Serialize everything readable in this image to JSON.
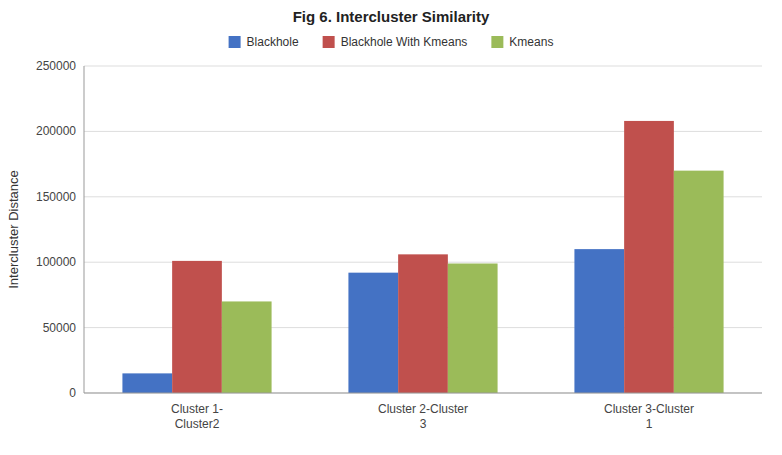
{
  "chart_data": {
    "type": "bar",
    "title": "Fig 6. Intercluster Similarity",
    "ylabel": "Intercluster Distance",
    "categories": [
      "Cluster 1-\nCluster2",
      "Cluster 2-Cluster\n3",
      "Cluster 3-Cluster\n1"
    ],
    "series": [
      {
        "name": "Blackhole",
        "color": "#4472C4",
        "values": [
          15000,
          92000,
          110000
        ]
      },
      {
        "name": "Blackhole With Kmeans",
        "color": "#C0504D",
        "values": [
          101000,
          106000,
          208000
        ]
      },
      {
        "name": "Kmeans",
        "color": "#9BBB59",
        "values": [
          70000,
          99000,
          170000
        ]
      }
    ],
    "ylim": [
      0,
      250000
    ],
    "yticks": [
      0,
      50000,
      100000,
      150000,
      200000,
      250000
    ],
    "grid": true,
    "legend": "top"
  }
}
